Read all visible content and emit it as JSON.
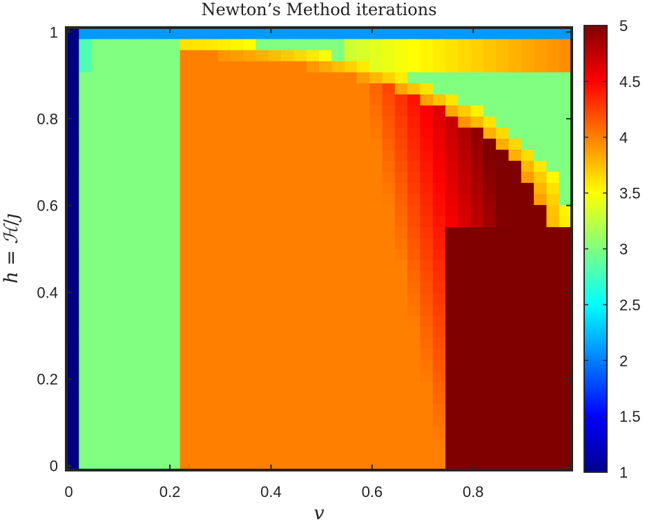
{
  "chart_data": {
    "type": "heatmap",
    "title": "Newton’s Method iterations",
    "xlabel": "v",
    "ylabel": "h = ℋ/ȷ",
    "ylabel_parts": {
      "h": "h",
      "eq": " = ",
      "H": "ℋ",
      "slash": "/",
      "J": "ȷ"
    },
    "xlim": [
      -0.005,
      0.995
    ],
    "ylim": [
      -0.01,
      1.01
    ],
    "xticks": [
      0,
      0.2,
      0.4,
      0.6,
      0.8
    ],
    "xtick_labels": [
      "0",
      "0.2",
      "0.4",
      "0.6",
      "0.8"
    ],
    "yticks": [
      0,
      0.2,
      0.4,
      0.6,
      0.8,
      1
    ],
    "ytick_labels": [
      "0",
      "0.2",
      "0.4",
      "0.6",
      "0.8",
      "1"
    ],
    "colorbar": {
      "range": [
        1,
        5
      ],
      "ticks": [
        1,
        1.5,
        2,
        2.5,
        3,
        3.5,
        4,
        4.5,
        5
      ],
      "tick_labels": [
        "1",
        "1.5",
        "2",
        "2.5",
        "3",
        "3.5",
        "4",
        "4.5",
        "5"
      ],
      "colormap": "jet"
    },
    "grid": {
      "nx": 40,
      "ny": 40,
      "x_range": [
        -0.005,
        0.995
      ],
      "y_range": [
        -0.01,
        1.01
      ],
      "description_of_regions": [
        {
          "region": "v < 0.0125",
          "value": 1
        },
        {
          "region": "h > 0.985",
          "value": 2.1
        },
        {
          "region": "0.0125 < v < 0.2125, h < 0.985",
          "value": 3
        },
        {
          "region": "0.2125 < v < 0.74, h < 0.54",
          "value": 4
        },
        {
          "region": "v > 0.74, h < 0.54",
          "value": 5
        },
        {
          "region": "boundary band near corner arc",
          "value": 3.5
        },
        {
          "region": "upper-right wedge",
          "value": "4 to 5 gradient"
        }
      ]
    }
  }
}
